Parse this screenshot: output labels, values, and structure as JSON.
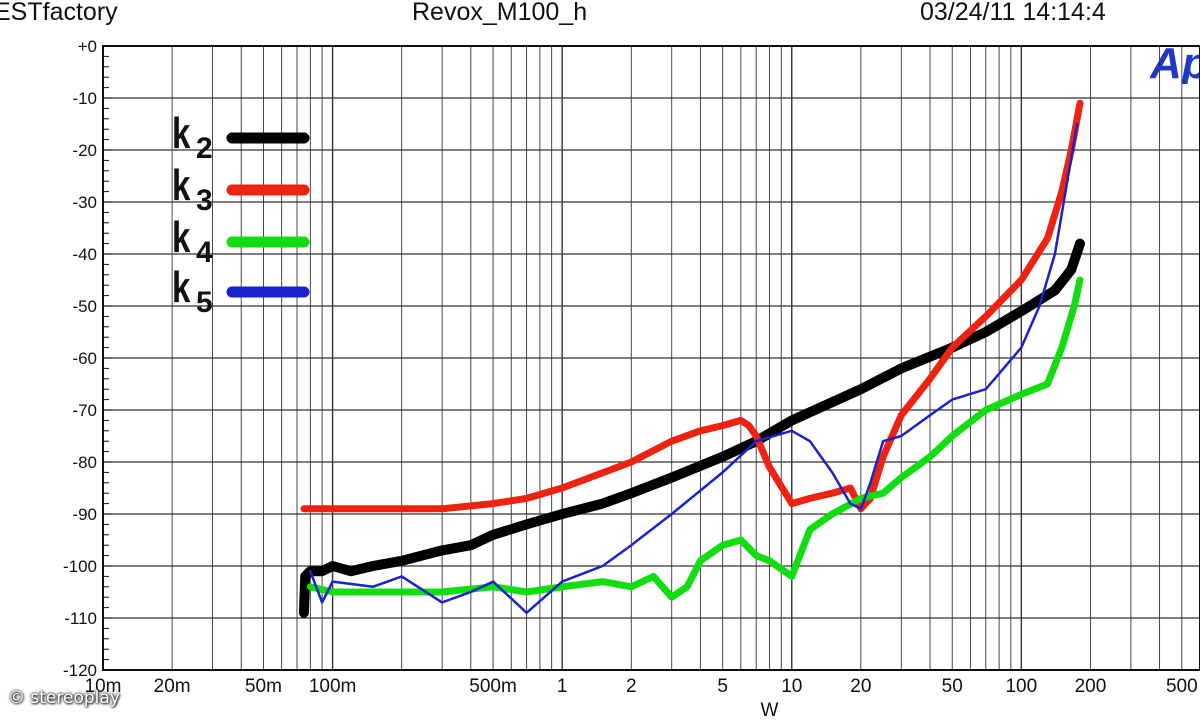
{
  "header": {
    "brand": "ESTfactory",
    "title": "Revox_M100_h",
    "timestamp": "03/24/11 14:14:4"
  },
  "logo_text": "Ap",
  "credit": "© stereoplay",
  "colors": {
    "k2": "#000000",
    "k3": "#ee2211",
    "k4": "#11dd11",
    "k5": "#1a22cc",
    "grid": "#333333"
  },
  "chart_data": {
    "type": "line",
    "xscale": "log",
    "xlabel": "W",
    "ylabel": "",
    "xlim": [
      0.01,
      600
    ],
    "ylim": [
      -120,
      0
    ],
    "grid": true,
    "x_ticks": [
      {
        "v": 0.01,
        "label": "10m"
      },
      {
        "v": 0.02,
        "label": "20m"
      },
      {
        "v": 0.05,
        "label": "50m"
      },
      {
        "v": 0.1,
        "label": "100m"
      },
      {
        "v": 0.5,
        "label": "500m"
      },
      {
        "v": 1,
        "label": "1"
      },
      {
        "v": 2,
        "label": "2"
      },
      {
        "v": 5,
        "label": "5"
      },
      {
        "v": 10,
        "label": "10"
      },
      {
        "v": 20,
        "label": "20"
      },
      {
        "v": 50,
        "label": "50"
      },
      {
        "v": 100,
        "label": "100"
      },
      {
        "v": 200,
        "label": "200"
      },
      {
        "v": 500,
        "label": "500"
      }
    ],
    "y_ticks": [
      {
        "v": 0,
        "label": "+0"
      },
      {
        "v": -10,
        "label": "-10"
      },
      {
        "v": -20,
        "label": "-20"
      },
      {
        "v": -30,
        "label": "-30"
      },
      {
        "v": -40,
        "label": "-40"
      },
      {
        "v": -50,
        "label": "-50"
      },
      {
        "v": -60,
        "label": "-60"
      },
      {
        "v": -70,
        "label": "-70"
      },
      {
        "v": -80,
        "label": "-80"
      },
      {
        "v": -90,
        "label": "-90"
      },
      {
        "v": -100,
        "label": "-100"
      },
      {
        "v": -110,
        "label": "-110"
      },
      {
        "v": -120,
        "label": "-120"
      }
    ],
    "legend": {
      "placement": "top-left"
    },
    "series": [
      {
        "name": "k2",
        "label_main": "k",
        "label_sub": "2",
        "color": "#000000",
        "weight": "thick",
        "points": [
          [
            0.075,
            -109
          ],
          [
            0.076,
            -102
          ],
          [
            0.08,
            -101
          ],
          [
            0.09,
            -101
          ],
          [
            0.1,
            -100
          ],
          [
            0.12,
            -101
          ],
          [
            0.15,
            -100
          ],
          [
            0.2,
            -99
          ],
          [
            0.3,
            -97
          ],
          [
            0.4,
            -96
          ],
          [
            0.5,
            -94
          ],
          [
            0.7,
            -92
          ],
          [
            1,
            -90
          ],
          [
            1.5,
            -88
          ],
          [
            2,
            -86
          ],
          [
            3,
            -83
          ],
          [
            5,
            -79
          ],
          [
            7,
            -76
          ],
          [
            10,
            -72
          ],
          [
            20,
            -66
          ],
          [
            30,
            -62
          ],
          [
            50,
            -58
          ],
          [
            70,
            -55
          ],
          [
            100,
            -51
          ],
          [
            140,
            -47
          ],
          [
            165,
            -43
          ],
          [
            180,
            -38
          ]
        ]
      },
      {
        "name": "k3",
        "label_main": "k",
        "label_sub": "3",
        "color": "#ee2211",
        "weight": "medium",
        "points": [
          [
            0.075,
            -89
          ],
          [
            0.1,
            -89
          ],
          [
            0.2,
            -89
          ],
          [
            0.3,
            -89
          ],
          [
            0.5,
            -88
          ],
          [
            0.7,
            -87
          ],
          [
            1,
            -85
          ],
          [
            2,
            -80
          ],
          [
            3,
            -76
          ],
          [
            4,
            -74
          ],
          [
            5,
            -73
          ],
          [
            6,
            -72
          ],
          [
            6.5,
            -73
          ],
          [
            7,
            -75
          ],
          [
            8,
            -81
          ],
          [
            10,
            -88
          ],
          [
            12,
            -87
          ],
          [
            15,
            -86
          ],
          [
            18,
            -85
          ],
          [
            20,
            -89
          ],
          [
            22,
            -87
          ],
          [
            25,
            -79
          ],
          [
            30,
            -71
          ],
          [
            40,
            -64
          ],
          [
            50,
            -58
          ],
          [
            70,
            -52
          ],
          [
            100,
            -45
          ],
          [
            130,
            -37
          ],
          [
            150,
            -28
          ],
          [
            165,
            -20
          ],
          [
            180,
            -11
          ]
        ]
      },
      {
        "name": "k4",
        "label_main": "k",
        "label_sub": "4",
        "color": "#11dd11",
        "weight": "medium",
        "points": [
          [
            0.08,
            -104
          ],
          [
            0.1,
            -105
          ],
          [
            0.2,
            -105
          ],
          [
            0.3,
            -105
          ],
          [
            0.5,
            -104
          ],
          [
            0.7,
            -105
          ],
          [
            1,
            -104
          ],
          [
            1.5,
            -103
          ],
          [
            2,
            -104
          ],
          [
            2.5,
            -102
          ],
          [
            3,
            -106
          ],
          [
            3.5,
            -104
          ],
          [
            4,
            -99
          ],
          [
            5,
            -96
          ],
          [
            6,
            -95
          ],
          [
            7,
            -98
          ],
          [
            8,
            -99
          ],
          [
            10,
            -102
          ],
          [
            12,
            -93
          ],
          [
            15,
            -90
          ],
          [
            20,
            -87
          ],
          [
            25,
            -86
          ],
          [
            30,
            -83
          ],
          [
            40,
            -79
          ],
          [
            50,
            -75
          ],
          [
            70,
            -70
          ],
          [
            100,
            -67
          ],
          [
            130,
            -65
          ],
          [
            150,
            -58
          ],
          [
            170,
            -50
          ],
          [
            180,
            -45
          ]
        ]
      },
      {
        "name": "k5",
        "label_main": "k",
        "label_sub": "5",
        "color": "#1a22cc",
        "weight": "thin",
        "points": [
          [
            0.08,
            -101
          ],
          [
            0.09,
            -107
          ],
          [
            0.1,
            -103
          ],
          [
            0.15,
            -104
          ],
          [
            0.2,
            -102
          ],
          [
            0.3,
            -107
          ],
          [
            0.4,
            -105
          ],
          [
            0.5,
            -103
          ],
          [
            0.7,
            -109
          ],
          [
            1,
            -103
          ],
          [
            1.5,
            -100
          ],
          [
            2,
            -96
          ],
          [
            3,
            -90
          ],
          [
            5,
            -82
          ],
          [
            7,
            -76
          ],
          [
            10,
            -74
          ],
          [
            12,
            -76
          ],
          [
            15,
            -82
          ],
          [
            18,
            -88
          ],
          [
            20,
            -89
          ],
          [
            22,
            -84
          ],
          [
            25,
            -76
          ],
          [
            30,
            -75
          ],
          [
            40,
            -71
          ],
          [
            50,
            -68
          ],
          [
            70,
            -66
          ],
          [
            100,
            -58
          ],
          [
            120,
            -50
          ],
          [
            140,
            -40
          ],
          [
            160,
            -25
          ],
          [
            175,
            -15
          ]
        ]
      }
    ]
  }
}
